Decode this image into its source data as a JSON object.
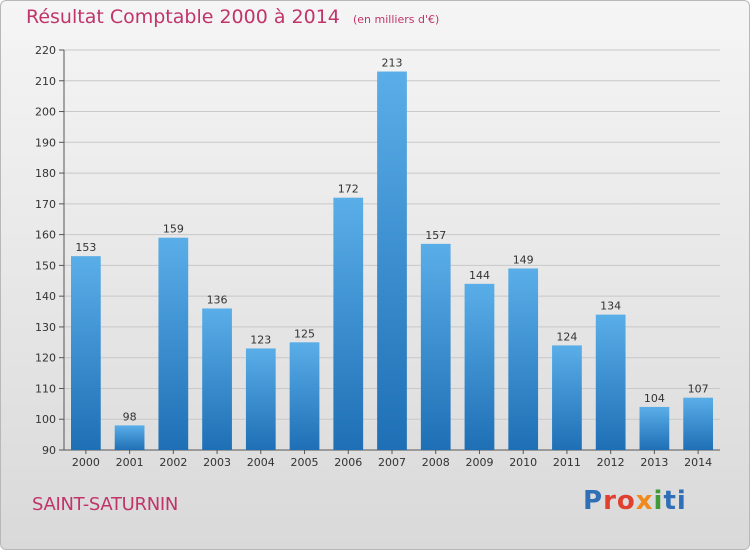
{
  "header": {
    "title": "Résultat Comptable 2000 à 2014",
    "subtitle": "(en milliers d'€)"
  },
  "footer": {
    "commune": "SAINT-SATURNIN",
    "logo_parts": [
      "P",
      "ro",
      "x",
      "i",
      "ti"
    ]
  },
  "chart_data": {
    "type": "bar",
    "title": "Résultat Comptable 2000 à 2014",
    "subtitle": "(en milliers d'€)",
    "xlabel": "",
    "ylabel": "",
    "categories": [
      "2000",
      "2001",
      "2002",
      "2003",
      "2004",
      "2005",
      "2006",
      "2007",
      "2008",
      "2009",
      "2010",
      "2011",
      "2012",
      "2013",
      "2014"
    ],
    "values": [
      153,
      98,
      159,
      136,
      123,
      125,
      172,
      213,
      157,
      144,
      149,
      124,
      134,
      104,
      107
    ],
    "ylim": [
      90,
      220
    ],
    "yticks": [
      90,
      100,
      110,
      120,
      130,
      140,
      150,
      160,
      170,
      180,
      190,
      200,
      210,
      220
    ],
    "grid": true,
    "colors": {
      "bar_light": "#5aaee8",
      "bar_dark": "#1e6fb5",
      "grid": "#c8c8c8",
      "text": "#333333"
    }
  }
}
